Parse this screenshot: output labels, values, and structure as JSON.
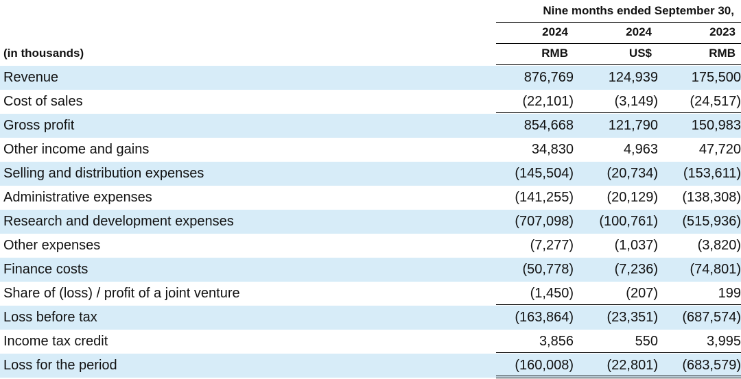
{
  "header": {
    "period": "Nine  months ended September 30,",
    "years": [
      "2024",
      "2024",
      "2023"
    ],
    "units_label": "(in thousands)",
    "currencies": [
      "RMB",
      "US$",
      "RMB"
    ]
  },
  "rows": [
    {
      "label": "Revenue",
      "values": [
        "876,769",
        "124,939",
        "175,500"
      ]
    },
    {
      "label": "Cost of sales",
      "values": [
        "(22,101)",
        "(3,149)",
        "(24,517)"
      ]
    },
    {
      "label": "Gross profit",
      "values": [
        "854,668",
        "121,790",
        "150,983"
      ]
    },
    {
      "label": "Other income and gains",
      "values": [
        "34,830",
        "4,963",
        "47,720"
      ]
    },
    {
      "label": "Selling and distribution expenses",
      "values": [
        "(145,504)",
        "(20,734)",
        "(153,611)"
      ]
    },
    {
      "label": "Administrative expenses",
      "values": [
        "(141,255)",
        "(20,129)",
        "(138,308)"
      ]
    },
    {
      "label": "Research and development expenses",
      "values": [
        "(707,098)",
        "(100,761)",
        "(515,936)"
      ]
    },
    {
      "label": "Other expenses",
      "values": [
        "(7,277)",
        "(1,037)",
        "(3,820)"
      ]
    },
    {
      "label": "Finance costs",
      "values": [
        "(50,778)",
        "(7,236)",
        "(74,801)"
      ]
    },
    {
      "label": "Share of (loss) / profit of a joint venture",
      "values": [
        "(1,450)",
        "(207)",
        "199"
      ]
    },
    {
      "label": "Loss before tax",
      "values": [
        "(163,864)",
        "(23,351)",
        "(687,574)"
      ]
    },
    {
      "label": "Income tax credit",
      "values": [
        "3,856",
        "550",
        "3,995"
      ]
    },
    {
      "label": "Loss for the period",
      "values": [
        "(160,008)",
        "(22,801)",
        "(683,579)"
      ]
    }
  ],
  "colors": {
    "band": "#d7ecf8",
    "rule": "#000000"
  }
}
